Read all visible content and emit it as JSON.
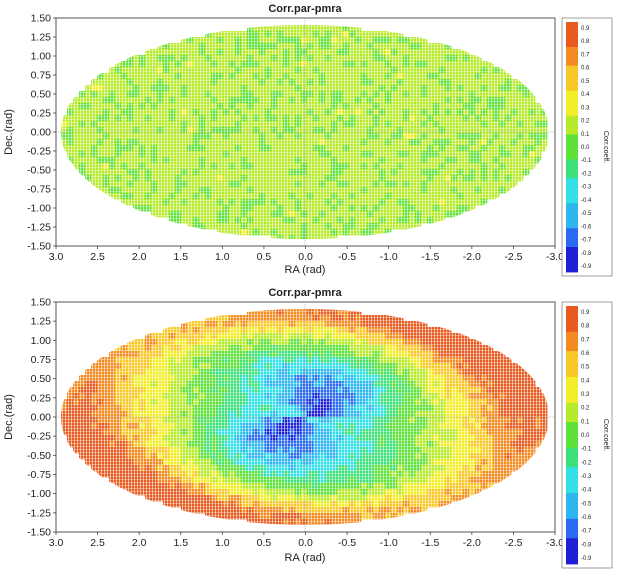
{
  "chart_data": [
    {
      "type": "heatmap",
      "projection": "aitoff-ellipse",
      "title": "Corr.par-pmra",
      "xlabel": "RA (rad)",
      "ylabel": "Dec.(rad)",
      "colorbar_label": "Corr.coeff.",
      "xlim": [
        3.0,
        -3.0
      ],
      "ylim": [
        -1.5,
        1.5
      ],
      "x_ticks": [
        "3.0",
        "2.5",
        "2.0",
        "1.5",
        "1.0",
        "0.5",
        "0.0",
        "-0.5",
        "-1.0",
        "-1.5",
        "-2.0",
        "-2.5",
        "-3.0"
      ],
      "y_ticks": [
        "1.50",
        "1.25",
        "1.00",
        "0.75",
        "0.50",
        "0.25",
        "0.00",
        "-0.25",
        "-0.50",
        "-0.75",
        "-1.00",
        "-1.25",
        "-1.50"
      ],
      "colorbar_ticks": [
        "0.9",
        "0.8",
        "0.7",
        "0.6",
        "0.5",
        "0.4",
        "0.3",
        "0.2",
        "0.1",
        "0.0",
        "-0.1",
        "-0.2",
        "-0.3",
        "-0.4",
        "-0.5",
        "-0.6",
        "-0.7",
        "-0.8",
        "-0.9"
      ],
      "value_range": [
        -1.0,
        1.0
      ],
      "pattern": "uniform-low",
      "typical_value": 0.15
    },
    {
      "type": "heatmap",
      "projection": "aitoff-ellipse",
      "title": "Corr.par-pmra",
      "xlabel": "RA (rad)",
      "ylabel": "Dec.(rad)",
      "colorbar_label": "Corr.coeff.",
      "xlim": [
        3.0,
        -3.0
      ],
      "ylim": [
        -1.5,
        1.5
      ],
      "x_ticks": [
        "3.0",
        "2.5",
        "2.0",
        "1.5",
        "1.0",
        "0.5",
        "0.0",
        "-0.5",
        "-1.0",
        "-1.5",
        "-2.0",
        "-2.5",
        "-3.0"
      ],
      "y_ticks": [
        "1.50",
        "1.25",
        "1.00",
        "0.75",
        "0.50",
        "0.25",
        "0.00",
        "-0.25",
        "-0.50",
        "-0.75",
        "-1.00",
        "-1.25",
        "-1.50"
      ],
      "colorbar_ticks": [
        "0.9",
        "0.8",
        "0.7",
        "0.6",
        "0.5",
        "0.4",
        "0.3",
        "0.2",
        "0.1",
        "0.0",
        "-0.1",
        "-0.2",
        "-0.3",
        "-0.4",
        "-0.5",
        "-0.6",
        "-0.7",
        "-0.8",
        "-0.9"
      ],
      "value_range": [
        -1.0,
        1.0
      ],
      "pattern": "scanning-law",
      "center_value": -0.7,
      "edge_value": 0.85
    }
  ],
  "colors": {
    "colorscale": [
      "#1f1fd6",
      "#2a6af0",
      "#2fb6f0",
      "#32e0e6",
      "#3ee07a",
      "#5ee23a",
      "#b6ea2a",
      "#f2ee2a",
      "#f8c828",
      "#f48a22",
      "#e85a20"
    ],
    "grid": "#8a8a8a",
    "axis": "#222222"
  }
}
